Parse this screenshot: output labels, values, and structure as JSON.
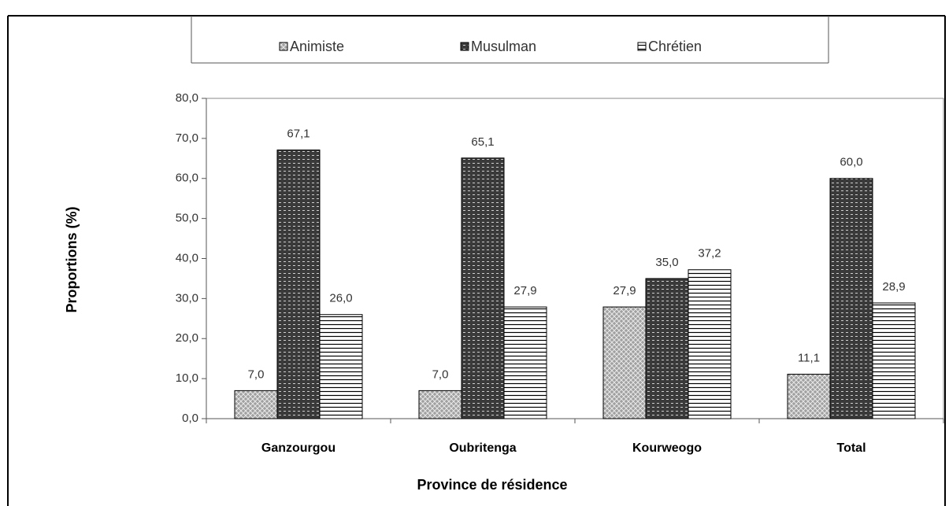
{
  "chart_data": {
    "type": "bar",
    "categories": [
      "Ganzourgou",
      "Oubritenga",
      "Kourweogo",
      "Total"
    ],
    "series": [
      {
        "name": "Animiste",
        "color": "#a0a0a0",
        "values": [
          7.0,
          7.0,
          27.9,
          11.1
        ],
        "value_labels": [
          "7,0",
          "7,0",
          "27,9",
          "11,1"
        ]
      },
      {
        "name": "Musulman",
        "color": "#3a3a3a",
        "values": [
          67.1,
          65.1,
          35.0,
          60.0
        ],
        "value_labels": [
          "67,1",
          "65,1",
          "35,0",
          "60,0"
        ]
      },
      {
        "name": "Chrétien",
        "color": "#ffffff",
        "values": [
          26.0,
          27.9,
          37.2,
          28.9
        ],
        "value_labels": [
          "26,0",
          "27,9",
          "37,2",
          "28,9"
        ]
      }
    ],
    "ylabel": "Proportions (%)",
    "xlabel": "Province de résidence",
    "ylim": [
      0,
      80
    ],
    "yticks": [
      {
        "value": 0,
        "label": "0,0"
      },
      {
        "value": 10,
        "label": "10,0"
      },
      {
        "value": 20,
        "label": "20,0"
      },
      {
        "value": 30,
        "label": "30,0"
      },
      {
        "value": 40,
        "label": "40,0"
      },
      {
        "value": 50,
        "label": "50,0"
      },
      {
        "value": 60,
        "label": "60,0"
      },
      {
        "value": 70,
        "label": "70,0"
      },
      {
        "value": 80,
        "label": "80,0"
      }
    ],
    "legend": "top"
  }
}
